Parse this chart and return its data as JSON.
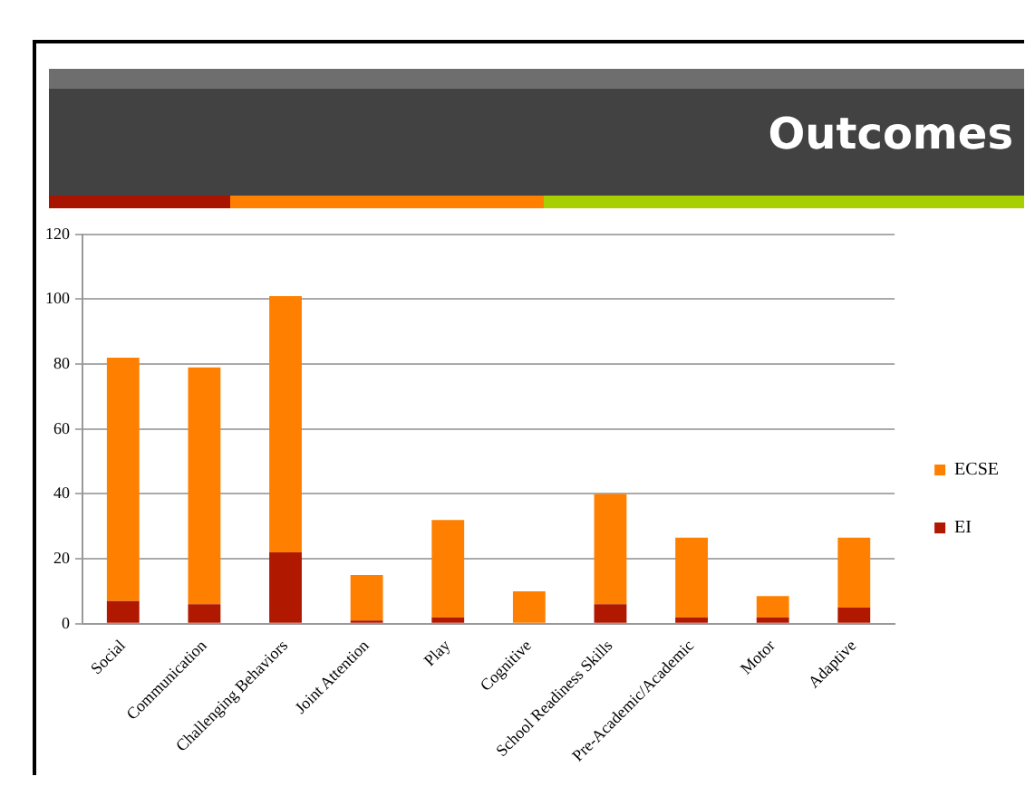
{
  "chart_data": {
    "type": "bar",
    "title": "Outcomes",
    "categories": [
      "Social",
      "Communication",
      "Challenging Behaviors",
      "Joint Attention",
      "Play",
      "Cognitive",
      "School Readiness Skills",
      "Pre-Academic/Academic",
      "Motor",
      "Adaptive"
    ],
    "series": [
      {
        "name": "EI",
        "color": "#b01800",
        "values": [
          7,
          6,
          22,
          1,
          2,
          0,
          6,
          2,
          2,
          5
        ]
      },
      {
        "name": "ECSE",
        "color": "#ff8000",
        "values": [
          75,
          73,
          79,
          14,
          30,
          10,
          34,
          24.5,
          6.5,
          21.5
        ]
      }
    ],
    "stacked": true,
    "ylim": [
      0,
      120
    ],
    "yticks": [
      0,
      20,
      40,
      60,
      80,
      100,
      120
    ],
    "grid": "y",
    "legend": "right"
  }
}
